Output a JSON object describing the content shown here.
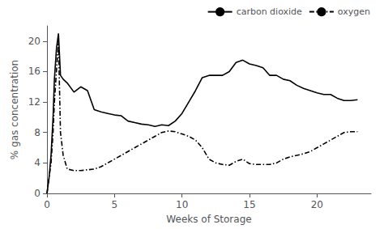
{
  "chart_data": {
    "type": "line",
    "xlabel": "Weeks of Storage",
    "ylabel": "% gas concentration",
    "x": [
      0,
      0.15,
      0.3,
      0.45,
      0.55,
      0.7,
      0.85,
      1.0,
      1.2,
      1.5,
      2.0,
      2.5,
      3.0,
      3.5,
      4.0,
      4.5,
      5.0,
      5.5,
      6.0,
      6.5,
      7.0,
      7.5,
      8.0,
      8.5,
      9.0,
      9.5,
      10.0,
      10.5,
      11.0,
      11.5,
      12.0,
      12.5,
      13.0,
      13.5,
      14.0,
      14.5,
      15.0,
      15.5,
      16.0,
      16.5,
      17.0,
      17.5,
      18.0,
      18.5,
      19.0,
      19.5,
      20.0,
      20.5,
      21.0,
      21.5,
      22.0,
      22.5,
      23.0
    ],
    "series": [
      {
        "name": "carbon dioxide",
        "color": "#000000",
        "line_style": "solid",
        "values": [
          0,
          2,
          5,
          10,
          15,
          19,
          21,
          15.5,
          15.0,
          14.5,
          13.3,
          14.0,
          13.5,
          11.0,
          10.7,
          10.5,
          10.3,
          10.2,
          9.5,
          9.3,
          9.1,
          9.0,
          8.8,
          9.0,
          8.9,
          9.5,
          10.5,
          12.0,
          13.5,
          15.2,
          15.5,
          15.5,
          15.5,
          16.0,
          17.2,
          17.5,
          17.0,
          16.8,
          16.5,
          15.5,
          15.5,
          15.0,
          14.8,
          14.2,
          13.8,
          13.5,
          13.2,
          13.0,
          13.0,
          12.5,
          12.2,
          12.2,
          12.3
        ]
      },
      {
        "name": "oxygen",
        "color": "#000000",
        "line_style": "dashdot",
        "values": [
          0,
          2,
          4,
          8,
          12,
          16,
          20,
          8.0,
          5.0,
          3.2,
          3.0,
          3.0,
          3.1,
          3.2,
          3.5,
          4.0,
          4.5,
          5.0,
          5.5,
          6.0,
          6.5,
          7.0,
          7.5,
          8.0,
          8.2,
          8.1,
          7.8,
          7.5,
          7.0,
          6.0,
          4.5,
          4.0,
          3.8,
          3.7,
          4.2,
          4.5,
          3.9,
          3.8,
          3.8,
          3.8,
          4.0,
          4.5,
          4.8,
          5.0,
          5.2,
          5.5,
          6.0,
          6.5,
          7.0,
          7.5,
          8.0,
          8.1,
          8.1
        ]
      }
    ],
    "xlim": [
      0,
      24
    ],
    "ylim": [
      0,
      22
    ],
    "xticks": [
      0,
      5,
      10,
      15,
      20
    ],
    "yticks": [
      0,
      4,
      8,
      12,
      16,
      20
    ],
    "grid": false,
    "legend": "upper right"
  }
}
